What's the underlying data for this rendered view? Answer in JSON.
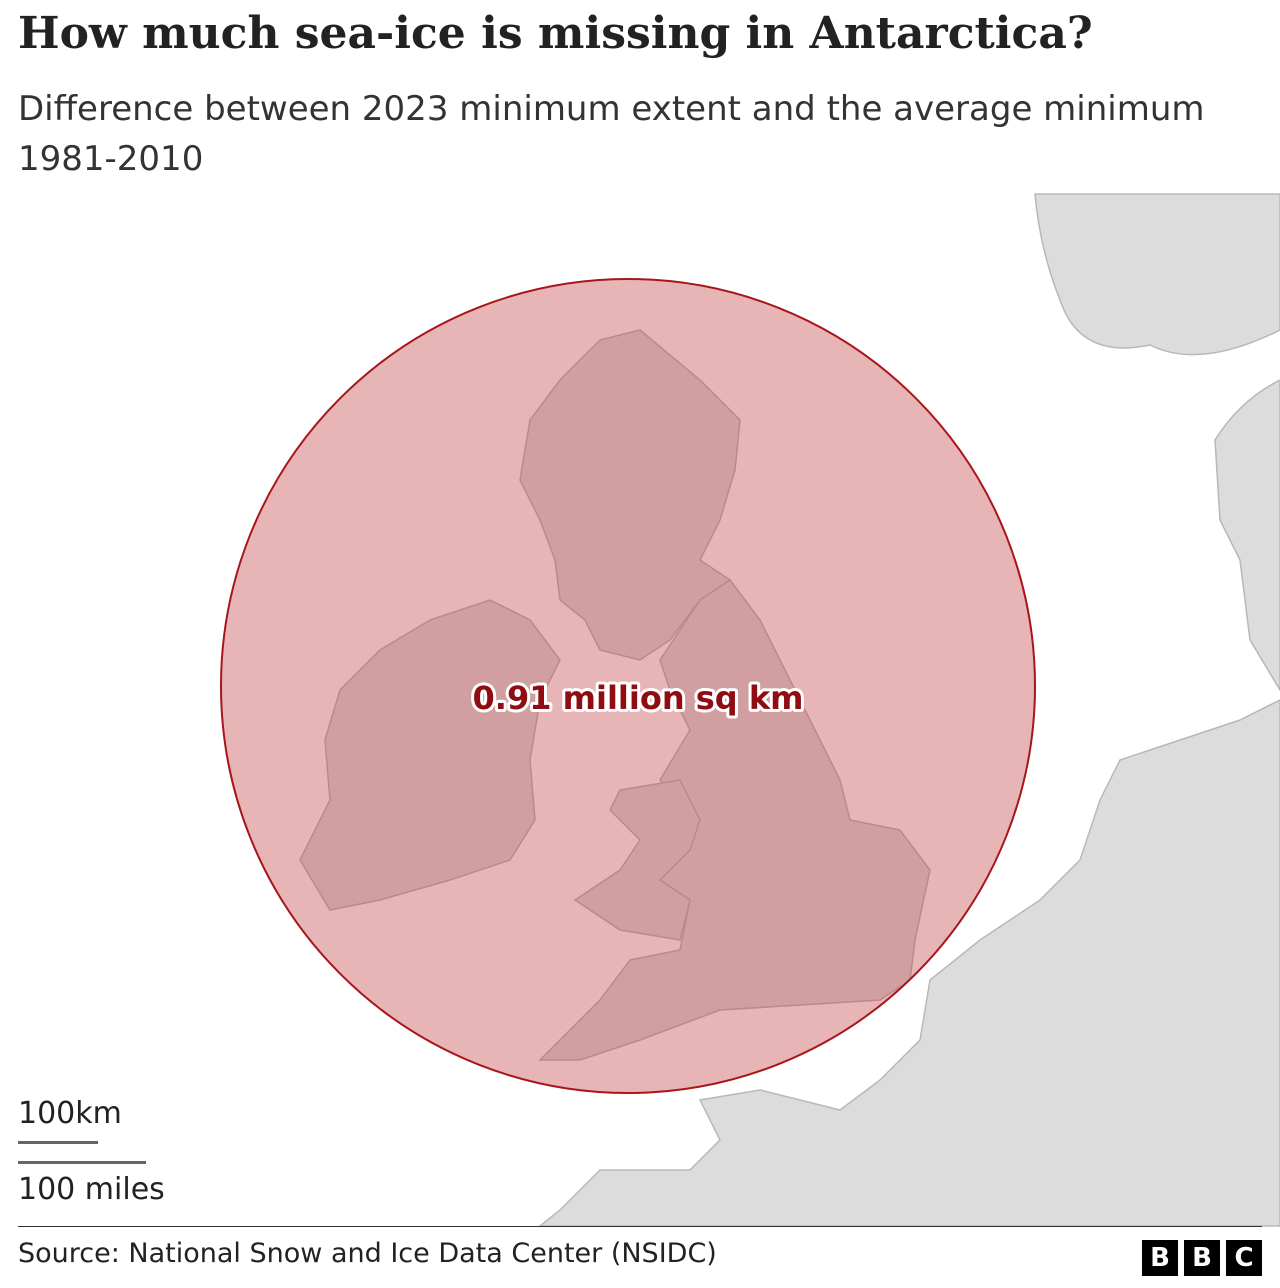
{
  "header": {
    "title": "How much sea-ice is missing in Antarctica?",
    "subtitle": "Difference between 2023 minimum extent and the average minimum 1981-2010"
  },
  "map": {
    "label": "0.91 million sq km",
    "scale": {
      "km": "100km",
      "miles": "100 miles"
    }
  },
  "footer": {
    "source": "Source: National Snow and Ice Data Center (NSIDC)",
    "logo": [
      "B",
      "B",
      "C"
    ]
  }
}
